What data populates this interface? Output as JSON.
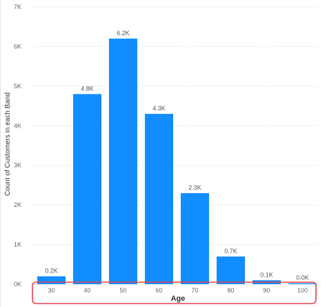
{
  "chart_data": {
    "type": "bar",
    "categories": [
      "30",
      "40",
      "50",
      "60",
      "70",
      "80",
      "90",
      "100"
    ],
    "values": [
      0.2,
      4.8,
      6.2,
      4.3,
      2.3,
      0.7,
      0.1,
      0.0
    ],
    "data_labels": [
      "0.2K",
      "4.8K",
      "6.2K",
      "4.3K",
      "2.3K",
      "0.7K",
      "0.1K",
      "0.0K"
    ],
    "value_unit": "K",
    "y_ticks": [
      "0K",
      "1K",
      "2K",
      "3K",
      "4K",
      "5K",
      "6K",
      "7K"
    ],
    "ylim": [
      0,
      7
    ],
    "xlabel": "Age",
    "ylabel": "Count of Customers in each Band",
    "grid": true,
    "bar_color": "#118DFF",
    "highlight_color": "#E8404B",
    "highlight_region": "x-axis tick labels and axis title"
  }
}
